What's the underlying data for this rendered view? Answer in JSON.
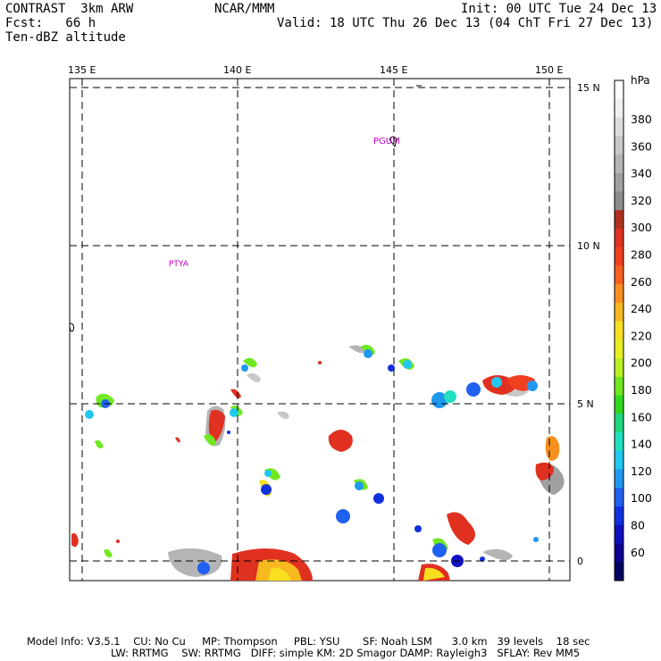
{
  "header": {
    "model": "CONTRAST  3km ARW",
    "org": "NCAR/MMM",
    "init": "Init: 00 UTC Tue 24 Dec 13",
    "fcst": "Fcst:   66 h",
    "valid": "Valid: 18 UTC Thu 26 Dec 13 (04 ChT Fri 27 Dec 13)",
    "field": "Ten-dBZ altitude"
  },
  "map": {
    "lon_labels": [
      "135 E",
      "140 E",
      "145 E",
      "150 E"
    ],
    "lat_labels": [
      "15 N",
      "10 N",
      "5 N",
      "0"
    ],
    "stations": [
      "PGUM",
      "PTYA"
    ]
  },
  "colorbar": {
    "unit": "hPa",
    "labels": [
      "380",
      "360",
      "340",
      "320",
      "300",
      "280",
      "260",
      "240",
      "220",
      "200",
      "180",
      "160",
      "140",
      "120",
      "100",
      "80",
      "60"
    ],
    "colors": [
      "#ffffff",
      "#f0f0f0",
      "#dcdcdc",
      "#c8c8c8",
      "#b4b4b4",
      "#a0a0a0",
      "#8c8c8c",
      "#b03020",
      "#e03020",
      "#f04020",
      "#f86020",
      "#f89020",
      "#f8b820",
      "#f8e020",
      "#e8f020",
      "#b8f020",
      "#70e820",
      "#30d820",
      "#20d880",
      "#20e0c0",
      "#20c8f0",
      "#2098f0",
      "#2060f0",
      "#1030e0",
      "#1010c0",
      "#100090",
      "#000060"
    ]
  },
  "footer": {
    "line1": "Model Info: V3.5.1    CU: No Cu     MP: Thompson     PBL: YSU       SF: Noah LSM      3.0 km   39 levels    18 sec",
    "line2": "LW: RRTMG    SW: RRTMG   DIFF: simple KM: 2D Smagor DAMP: Rayleigh3   SFLAY: Rev MM5"
  }
}
